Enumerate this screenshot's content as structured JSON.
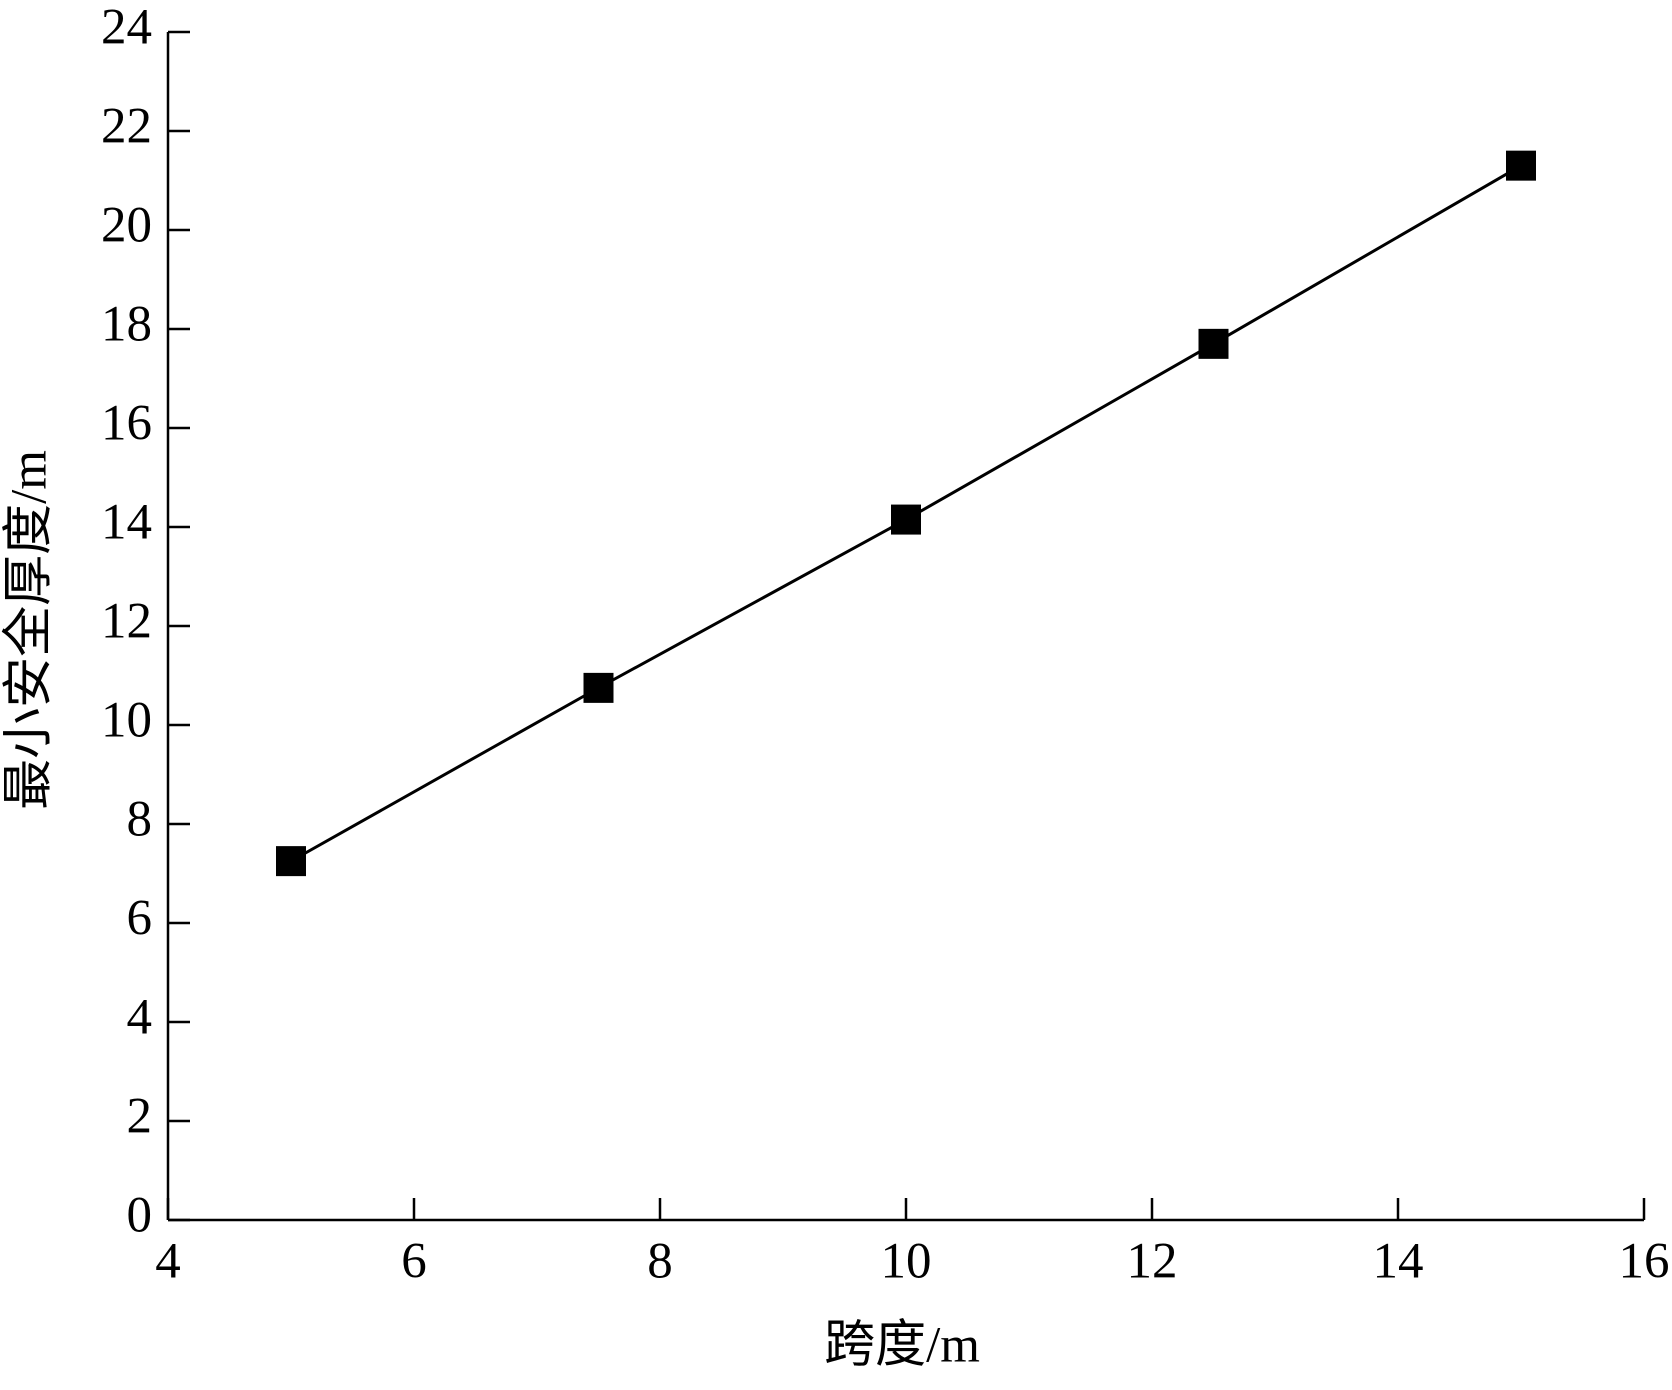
{
  "chart_data": {
    "type": "line",
    "x_label": "跨度/m",
    "y_label": "最小安全厚度/m",
    "x": [
      5,
      7.5,
      10,
      12.5,
      15
    ],
    "values": [
      7.25,
      10.75,
      14.15,
      17.7,
      21.3
    ],
    "color": "#000000",
    "marker": "square",
    "xlim": [
      4,
      16
    ],
    "xticks": [
      4,
      6,
      8,
      10,
      12,
      14,
      16
    ],
    "ylim": [
      0,
      24
    ],
    "yticks": [
      0,
      2,
      4,
      6,
      8,
      10,
      12,
      14,
      16,
      18,
      20,
      22,
      24
    ]
  }
}
